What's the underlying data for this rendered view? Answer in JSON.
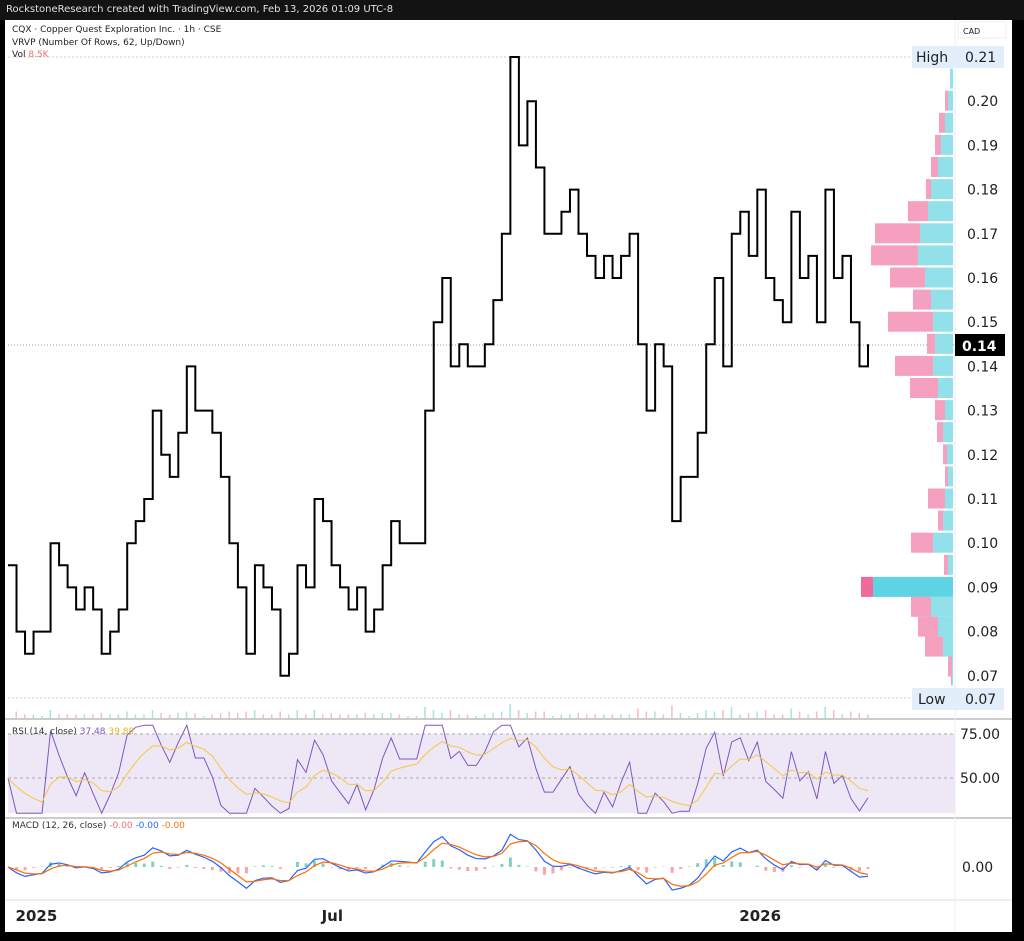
{
  "topbar": {
    "text": "RockstoneResearch created with TradingView.com, Feb 13, 2026 01:09 UTC-8"
  },
  "legend": {
    "symbol": "CQX · Copper Quest Exploration Inc. · 1h · CSE",
    "vrvp": "VRVP (Number Of Rows, 62, Up/Down)",
    "vol_label": "Vol",
    "vol_value": "8.5K"
  },
  "rsi": {
    "label": "RSI (14, close)",
    "value": "37.48",
    "ma_value": "39.88",
    "levels": [
      "75.00",
      "50.00"
    ]
  },
  "macd": {
    "label": "MACD (12, 26, close)",
    "hist": "-0.00",
    "macd": "-0.00",
    "signal": "-0.00",
    "levels": [
      "0.00"
    ]
  },
  "colors": {
    "price": "#000000",
    "up": "#5fd3e2",
    "down": "#f49bbb",
    "rsi": "#7e57c2",
    "rsi_ma": "#f5c842",
    "macd": "#2962ff",
    "signal": "#ff6d00",
    "rsi_band": "#ede7f6"
  },
  "chart_data": {
    "type": "line",
    "currency": "CAD",
    "high": {
      "label": "High",
      "value": "0.21"
    },
    "low": {
      "label": "Low",
      "value": "0.07"
    },
    "last": "0.14",
    "yticks": [
      "0.21",
      "0.20",
      "0.19",
      "0.18",
      "0.17",
      "0.16",
      "0.15",
      "0.14",
      "0.13",
      "0.12",
      "0.11",
      "0.10",
      "0.09",
      "0.08",
      "0.07"
    ],
    "ylim": [
      0.07,
      0.21
    ],
    "xticks": [
      {
        "label": "2025",
        "index": 3
      },
      {
        "label": "Jul",
        "index": 38
      },
      {
        "label": "2026",
        "index": 88
      }
    ],
    "close": [
      0.095,
      0.08,
      0.075,
      0.08,
      0.08,
      0.1,
      0.095,
      0.09,
      0.085,
      0.09,
      0.085,
      0.075,
      0.08,
      0.085,
      0.1,
      0.105,
      0.11,
      0.13,
      0.12,
      0.115,
      0.125,
      0.14,
      0.13,
      0.13,
      0.125,
      0.115,
      0.1,
      0.09,
      0.075,
      0.095,
      0.09,
      0.085,
      0.07,
      0.075,
      0.095,
      0.09,
      0.11,
      0.105,
      0.095,
      0.09,
      0.085,
      0.09,
      0.08,
      0.085,
      0.095,
      0.105,
      0.1,
      0.1,
      0.1,
      0.13,
      0.15,
      0.16,
      0.14,
      0.145,
      0.14,
      0.14,
      0.145,
      0.155,
      0.17,
      0.21,
      0.19,
      0.2,
      0.185,
      0.17,
      0.17,
      0.175,
      0.18,
      0.17,
      0.165,
      0.16,
      0.165,
      0.16,
      0.165,
      0.17,
      0.145,
      0.13,
      0.145,
      0.14,
      0.105,
      0.115,
      0.115,
      0.125,
      0.145,
      0.16,
      0.14,
      0.17,
      0.175,
      0.165,
      0.18,
      0.16,
      0.155,
      0.15,
      0.175,
      0.16,
      0.165,
      0.15,
      0.18,
      0.16,
      0.165,
      0.15,
      0.14,
      0.145
    ],
    "volume_profile": [
      {
        "price": 0.205,
        "up": 3,
        "down": 0
      },
      {
        "price": 0.2,
        "up": 5,
        "down": 3
      },
      {
        "price": 0.195,
        "up": 8,
        "down": 6
      },
      {
        "price": 0.19,
        "up": 12,
        "down": 6
      },
      {
        "price": 0.185,
        "up": 15,
        "down": 7
      },
      {
        "price": 0.18,
        "up": 22,
        "down": 5
      },
      {
        "price": 0.175,
        "up": 25,
        "down": 20
      },
      {
        "price": 0.17,
        "up": 33,
        "down": 45
      },
      {
        "price": 0.165,
        "up": 35,
        "down": 47
      },
      {
        "price": 0.16,
        "up": 28,
        "down": 35
      },
      {
        "price": 0.155,
        "up": 22,
        "down": 18
      },
      {
        "price": 0.15,
        "up": 20,
        "down": 45
      },
      {
        "price": 0.145,
        "up": 18,
        "down": 8
      },
      {
        "price": 0.14,
        "up": 20,
        "down": 38
      },
      {
        "price": 0.135,
        "up": 15,
        "down": 28
      },
      {
        "price": 0.13,
        "up": 8,
        "down": 10
      },
      {
        "price": 0.125,
        "up": 10,
        "down": 6
      },
      {
        "price": 0.12,
        "up": 6,
        "down": 4
      },
      {
        "price": 0.115,
        "up": 5,
        "down": 3
      },
      {
        "price": 0.11,
        "up": 8,
        "down": 17
      },
      {
        "price": 0.105,
        "up": 10,
        "down": 5
      },
      {
        "price": 0.1,
        "up": 20,
        "down": 22
      },
      {
        "price": 0.095,
        "up": 5,
        "down": 4
      },
      {
        "price": 0.09,
        "up": 80,
        "down": 12
      },
      {
        "price": 0.0855,
        "up": 22,
        "down": 20
      },
      {
        "price": 0.081,
        "up": 15,
        "down": 20
      },
      {
        "price": 0.0765,
        "up": 10,
        "down": 18
      },
      {
        "price": 0.072,
        "up": 1,
        "down": 4
      },
      {
        "price": 0.07,
        "up": 1,
        "down": 1
      }
    ]
  }
}
